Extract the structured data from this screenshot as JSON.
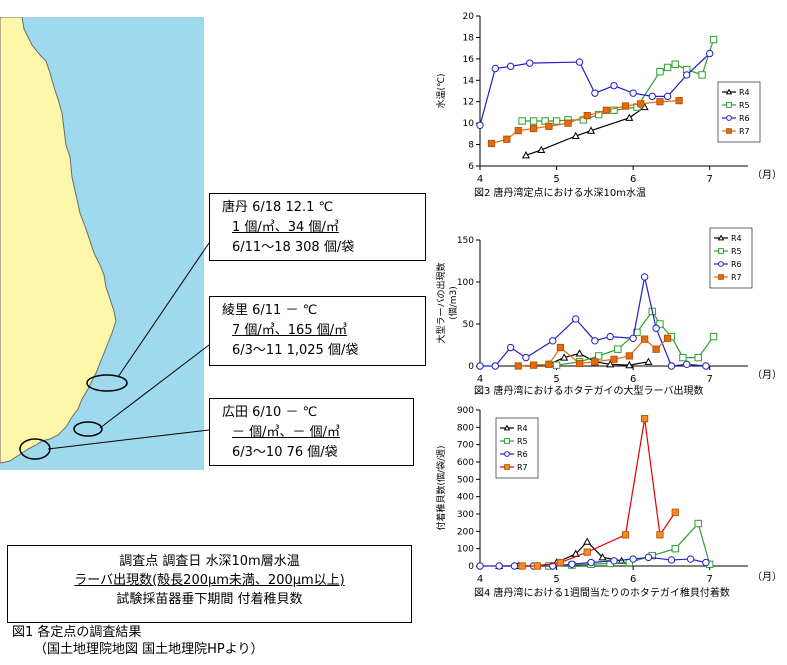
{
  "map": {
    "colors": {
      "sea": "#9fd9ee",
      "land": "#fbf6a8",
      "coast": "#6b6b6b"
    }
  },
  "stations": [
    {
      "line1": "唐丹  6/18    12.1 ℃",
      "line2": "1 個/㎥、34 個/㎥",
      "line3": "6/11～18  308 個/袋"
    },
    {
      "line1": "綾里  6/11    － ℃",
      "line2": "7 個/㎥、165 個/㎥",
      "line3": "6/3～11  1,025 個/袋"
    },
    {
      "line1": "広田  6/10  － ℃",
      "line2": "－ 個/㎥、－ 個/㎥",
      "line3": "6/3～10    76 個/袋"
    }
  ],
  "legend_box": {
    "line1": "調査点  調査日  水深10m層水温",
    "line2": "ラーバ出現数(殻長200μm未満、200μm以上)",
    "line3": "試験採苗器垂下期間  付着稚貝数"
  },
  "fig1_caption": {
    "line1": "図1  各定点の調査結果",
    "line2": "（国土地理院地図  国土地理院HPより）"
  },
  "chart_data": [
    {
      "type": "line",
      "caption": "図2  唐丹湾定点における水深10m水温",
      "ylabel": "水温(℃)",
      "xlabel": "（月）",
      "xlim": [
        4,
        7.5
      ],
      "ylim": [
        6,
        20
      ],
      "xticks": [
        4,
        5,
        6,
        7
      ],
      "yticks": [
        6,
        8,
        10,
        12,
        14,
        16,
        18,
        20
      ],
      "legend_position": "right",
      "series": [
        {
          "name": "R4",
          "color": "#000000",
          "marker": "triangle",
          "x": [
            4.6,
            4.8,
            5.25,
            5.45,
            5.95,
            6.15
          ],
          "y": [
            7.0,
            7.5,
            8.8,
            9.3,
            10.5,
            11.5
          ]
        },
        {
          "name": "R5",
          "color": "#2ca02c",
          "marker": "square",
          "x": [
            4.55,
            4.7,
            4.85,
            5.0,
            5.15,
            5.35,
            5.55,
            5.75,
            6.05,
            6.35,
            6.45,
            6.55,
            6.7,
            6.9,
            7.05
          ],
          "y": [
            10.2,
            10.2,
            10.2,
            10.2,
            10.3,
            10.3,
            10.8,
            11.2,
            11.5,
            14.8,
            15.2,
            15.5,
            15.0,
            14.5,
            17.8
          ]
        },
        {
          "name": "R6",
          "color": "#2020c8",
          "marker": "circle",
          "x": [
            4.0,
            4.2,
            4.4,
            4.65,
            5.3,
            5.5,
            5.75,
            6.0,
            6.25,
            6.45,
            6.7,
            7.0
          ],
          "y": [
            9.8,
            15.1,
            15.3,
            15.6,
            15.7,
            12.8,
            13.5,
            12.8,
            12.5,
            12.5,
            14.5,
            16.5
          ]
        },
        {
          "name": "R7",
          "color": "#e36c0a",
          "marker": "square-filled",
          "x": [
            4.15,
            4.35,
            4.5,
            4.7,
            4.9,
            5.15,
            5.4,
            5.65,
            5.9,
            6.1,
            6.35,
            6.6
          ],
          "y": [
            8.1,
            8.5,
            9.3,
            9.5,
            9.7,
            10.0,
            10.7,
            11.2,
            11.6,
            11.8,
            12.0,
            12.1
          ]
        }
      ]
    },
    {
      "type": "line",
      "caption": "図3  唐丹湾におけるホタテガイの大型ラーバ出現数",
      "ylabel": "大型ラーバの出現数",
      "yunit": "(個/m3)",
      "xlabel": "（月）",
      "xlim": [
        4,
        7.5
      ],
      "ylim": [
        0,
        150
      ],
      "xticks": [
        4,
        5,
        6,
        7
      ],
      "yticks": [
        0,
        50,
        100,
        150
      ],
      "legend_position": "right",
      "series": [
        {
          "name": "R4",
          "color": "#000000",
          "marker": "triangle",
          "x": [
            4.9,
            5.1,
            5.3,
            5.5,
            5.7,
            5.95,
            6.2
          ],
          "y": [
            2,
            10,
            15,
            5,
            2,
            1,
            5
          ]
        },
        {
          "name": "R5",
          "color": "#2ca02c",
          "marker": "square",
          "x": [
            5.0,
            5.3,
            5.55,
            5.8,
            6.05,
            6.25,
            6.35,
            6.5,
            6.65,
            6.85,
            7.05
          ],
          "y": [
            1,
            5,
            12,
            20,
            40,
            65,
            50,
            35,
            10,
            10,
            35
          ]
        },
        {
          "name": "R6",
          "color": "#2020c8",
          "marker": "circle",
          "x": [
            4.0,
            4.2,
            4.4,
            4.6,
            4.95,
            5.25,
            5.5,
            5.7,
            6.0,
            6.15,
            6.3,
            6.5,
            6.7,
            6.95
          ],
          "y": [
            0,
            0,
            22,
            10,
            30,
            56,
            30,
            35,
            33,
            106,
            45,
            0,
            2,
            0
          ]
        },
        {
          "name": "R7",
          "color": "#e36c0a",
          "marker": "square-filled",
          "x": [
            4.5,
            4.7,
            4.9,
            5.05,
            5.3,
            5.5,
            5.75,
            5.95,
            6.15,
            6.3,
            6.45
          ],
          "y": [
            0,
            1,
            2,
            22,
            3,
            5,
            8,
            12,
            32,
            20,
            33
          ]
        }
      ]
    },
    {
      "type": "line",
      "caption": "図4  唐丹湾における1週間当たりのホタテガイ稚貝付着数",
      "ylabel": "付着稚貝数(個/袋/週)",
      "xlabel": "（月）",
      "xlim": [
        4,
        7.5
      ],
      "ylim": [
        0,
        900
      ],
      "xticks": [
        4,
        5,
        6,
        7
      ],
      "yticks": [
        0,
        100,
        200,
        300,
        400,
        500,
        600,
        700,
        800,
        900
      ],
      "legend_position": "top-left",
      "series": [
        {
          "name": "R4",
          "color": "#000000",
          "marker": "triangle",
          "x": [
            4.25,
            4.5,
            4.75,
            5.0,
            5.25,
            5.4,
            5.6,
            5.85
          ],
          "y": [
            0,
            0,
            0,
            20,
            70,
            140,
            50,
            30
          ]
        },
        {
          "name": "R5",
          "color": "#2ca02c",
          "marker": "square",
          "x": [
            4.9,
            5.2,
            5.45,
            5.7,
            5.95,
            6.25,
            6.55,
            6.85,
            7.0
          ],
          "y": [
            0,
            5,
            10,
            15,
            20,
            60,
            100,
            245,
            10
          ]
        },
        {
          "name": "R6",
          "color": "#2020c8",
          "marker": "circle",
          "x": [
            4.0,
            4.25,
            4.45,
            4.7,
            4.95,
            5.2,
            5.45,
            5.75,
            6.0,
            6.2,
            6.5,
            6.75,
            6.95
          ],
          "y": [
            0,
            0,
            0,
            0,
            0,
            10,
            20,
            30,
            40,
            50,
            35,
            40,
            20
          ]
        },
        {
          "name": "R7",
          "color": "#e00000",
          "marker": "square-filled-orange",
          "x": [
            4.55,
            4.75,
            5.05,
            5.4,
            5.9,
            6.15,
            6.35,
            6.55
          ],
          "y": [
            0,
            0,
            20,
            80,
            180,
            850,
            180,
            310
          ]
        }
      ]
    }
  ]
}
